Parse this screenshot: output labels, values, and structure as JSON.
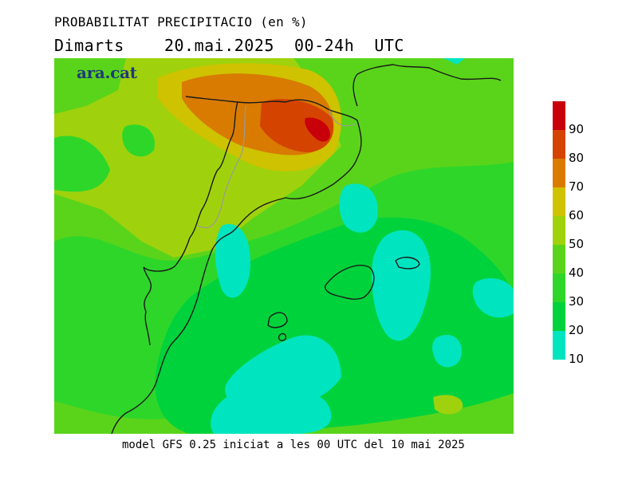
{
  "header": {
    "title": "PROBABILITAT PRECIPITACIO (en %)",
    "date_line": "Dimarts    20.mai.2025  00-24h  UTC"
  },
  "brand": {
    "text": "ara.cat"
  },
  "footer": {
    "text": "model GFS 0.25 iniciat a les 00 UTC del 10 mai 2025"
  },
  "legend": {
    "bands": [
      {
        "from": 10,
        "to": 20,
        "color": "#00e5c0"
      },
      {
        "from": 20,
        "to": 30,
        "color": "#00d23c"
      },
      {
        "from": 30,
        "to": 40,
        "color": "#2ed62a"
      },
      {
        "from": 40,
        "to": 50,
        "color": "#5ad41a"
      },
      {
        "from": 50,
        "to": 60,
        "color": "#9fd20c"
      },
      {
        "from": 60,
        "to": 70,
        "color": "#cfc200"
      },
      {
        "from": 70,
        "to": 80,
        "color": "#d97b00"
      },
      {
        "from": 80,
        "to": 90,
        "color": "#d44400"
      },
      {
        "from": 90,
        "to": 100,
        "color": "#c8000a"
      }
    ],
    "labels": [
      "10",
      "20",
      "30",
      "40",
      "50",
      "60",
      "70",
      "80",
      "90"
    ]
  },
  "colors": {
    "border_line": "#1a1a1a",
    "internal_border": "#9a9a9a"
  }
}
